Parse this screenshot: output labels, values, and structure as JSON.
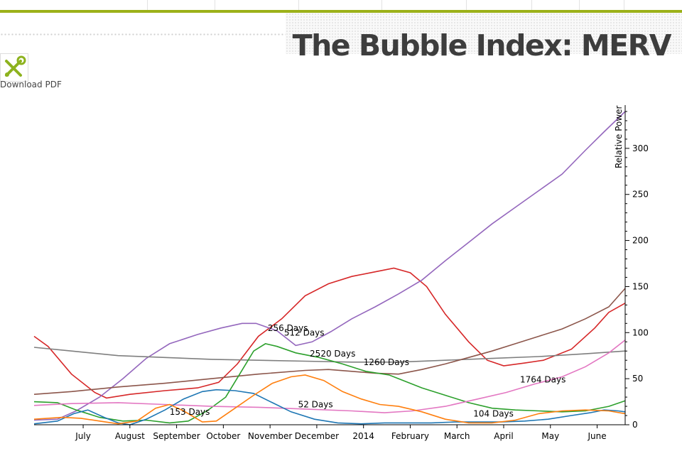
{
  "header": {
    "title": "The Bubble Index: MERV"
  },
  "toolbar": {
    "download_label": "Download PDF",
    "tool_icon": "tools-icon"
  },
  "colors": {
    "accent": "#9cb119"
  },
  "chart_data": {
    "type": "line",
    "ylabel": "Relative Power",
    "xlabel": "",
    "ylim": [
      0,
      350
    ],
    "yticks": [
      0,
      50,
      100,
      150,
      200,
      250,
      300
    ],
    "x_ticks": [
      {
        "label": "July",
        "x": 1.75
      },
      {
        "label": "August",
        "x": 2.75
      },
      {
        "label": "September",
        "x": 3.75
      },
      {
        "label": "October",
        "x": 4.75
      },
      {
        "label": "November",
        "x": 5.75
      },
      {
        "label": "December",
        "x": 6.75
      },
      {
        "label": "2014",
        "x": 7.75
      },
      {
        "label": "February",
        "x": 8.75
      },
      {
        "label": "March",
        "x": 9.75
      },
      {
        "label": "April",
        "x": 10.75
      },
      {
        "label": "May",
        "x": 11.75
      },
      {
        "label": "June",
        "x": 12.75
      }
    ],
    "xlim": [
      0.7,
      13.35
    ],
    "annotations": [
      {
        "text": "256 Days",
        "x": 5.7,
        "y": 105
      },
      {
        "text": "512 Days",
        "x": 6.05,
        "y": 100
      },
      {
        "text": "2520 Days",
        "x": 6.6,
        "y": 77
      },
      {
        "text": "1260 Days",
        "x": 7.75,
        "y": 68
      },
      {
        "text": "1764 Days",
        "x": 11.1,
        "y": 49
      },
      {
        "text": "153 Days",
        "x": 3.6,
        "y": 14
      },
      {
        "text": "52 Days",
        "x": 6.35,
        "y": 22
      },
      {
        "text": "104 Days",
        "x": 10.1,
        "y": 12
      }
    ],
    "series": [
      {
        "color": "#d62728",
        "points": [
          [
            0.7,
            96
          ],
          [
            1.0,
            85
          ],
          [
            1.5,
            55
          ],
          [
            2.0,
            35
          ],
          [
            2.25,
            29
          ],
          [
            2.75,
            33
          ],
          [
            3.5,
            37
          ],
          [
            4.2,
            40
          ],
          [
            4.65,
            46
          ],
          [
            5.05,
            66
          ],
          [
            5.5,
            96
          ],
          [
            6.0,
            115
          ],
          [
            6.5,
            140
          ],
          [
            7.0,
            153
          ],
          [
            7.5,
            161
          ],
          [
            8.0,
            166
          ],
          [
            8.4,
            170
          ],
          [
            8.75,
            165
          ],
          [
            9.1,
            150
          ],
          [
            9.5,
            120
          ],
          [
            10.0,
            90
          ],
          [
            10.4,
            70
          ],
          [
            10.75,
            64
          ],
          [
            11.2,
            67
          ],
          [
            11.6,
            70
          ],
          [
            12.2,
            82
          ],
          [
            12.7,
            105
          ],
          [
            13.0,
            122
          ],
          [
            13.35,
            132
          ]
        ]
      },
      {
        "color": "#9467bd",
        "points": [
          [
            0.7,
            5
          ],
          [
            1.2,
            6
          ],
          [
            1.6,
            15
          ],
          [
            2.1,
            30
          ],
          [
            2.6,
            50
          ],
          [
            3.1,
            72
          ],
          [
            3.6,
            88
          ],
          [
            4.2,
            98
          ],
          [
            4.7,
            105
          ],
          [
            5.15,
            110
          ],
          [
            5.45,
            110
          ],
          [
            5.9,
            102
          ],
          [
            6.3,
            86
          ],
          [
            6.65,
            90
          ],
          [
            7.05,
            101
          ],
          [
            7.5,
            115
          ],
          [
            8.0,
            128
          ],
          [
            8.5,
            142
          ],
          [
            9.0,
            157
          ],
          [
            9.5,
            178
          ],
          [
            10.0,
            198
          ],
          [
            10.5,
            218
          ],
          [
            11.0,
            236
          ],
          [
            11.5,
            254
          ],
          [
            12.0,
            272
          ],
          [
            12.5,
            298
          ],
          [
            12.9,
            318
          ],
          [
            13.35,
            340
          ]
        ]
      },
      {
        "color": "#7f7f7f",
        "points": [
          [
            0.7,
            84
          ],
          [
            1.5,
            80
          ],
          [
            2.5,
            75
          ],
          [
            3.5,
            73
          ],
          [
            4.5,
            71
          ],
          [
            5.5,
            70
          ],
          [
            6.5,
            69
          ],
          [
            7.5,
            68
          ],
          [
            8.5,
            68
          ],
          [
            9.5,
            70
          ],
          [
            10.5,
            72
          ],
          [
            11.5,
            74
          ],
          [
            12.5,
            77
          ],
          [
            13.35,
            80
          ]
        ]
      },
      {
        "color": "#8c564b",
        "points": [
          [
            0.7,
            33
          ],
          [
            1.5,
            36
          ],
          [
            2.5,
            41
          ],
          [
            3.5,
            45
          ],
          [
            4.5,
            50
          ],
          [
            5.5,
            55
          ],
          [
            6.5,
            59
          ],
          [
            7.0,
            60
          ],
          [
            7.5,
            58
          ],
          [
            8.0,
            56
          ],
          [
            8.5,
            55
          ],
          [
            9.0,
            60
          ],
          [
            9.5,
            66
          ],
          [
            10.0,
            73
          ],
          [
            10.5,
            80
          ],
          [
            11.0,
            88
          ],
          [
            11.5,
            96
          ],
          [
            12.0,
            104
          ],
          [
            12.5,
            115
          ],
          [
            13.0,
            128
          ],
          [
            13.35,
            148
          ]
        ]
      },
      {
        "color": "#2ca02c",
        "points": [
          [
            0.7,
            25
          ],
          [
            1.2,
            24
          ],
          [
            1.6,
            16
          ],
          [
            2.1,
            8
          ],
          [
            2.6,
            4
          ],
          [
            3.1,
            5
          ],
          [
            3.6,
            2
          ],
          [
            4.0,
            4
          ],
          [
            4.4,
            15
          ],
          [
            4.8,
            30
          ],
          [
            5.1,
            55
          ],
          [
            5.4,
            80
          ],
          [
            5.65,
            88
          ],
          [
            5.9,
            85
          ],
          [
            6.3,
            78
          ],
          [
            6.8,
            73
          ],
          [
            7.3,
            66
          ],
          [
            7.8,
            58
          ],
          [
            8.3,
            54
          ],
          [
            8.6,
            48
          ],
          [
            9.0,
            40
          ],
          [
            9.5,
            32
          ],
          [
            10.0,
            24
          ],
          [
            10.5,
            18
          ],
          [
            11.0,
            16
          ],
          [
            11.5,
            15
          ],
          [
            12.0,
            14
          ],
          [
            12.5,
            15
          ],
          [
            13.0,
            20
          ],
          [
            13.35,
            26
          ]
        ]
      },
      {
        "color": "#e377c2",
        "points": [
          [
            0.7,
            21
          ],
          [
            1.5,
            23
          ],
          [
            2.5,
            24
          ],
          [
            3.5,
            22
          ],
          [
            4.5,
            20
          ],
          [
            5.5,
            19
          ],
          [
            6.5,
            17
          ],
          [
            7.5,
            15
          ],
          [
            8.2,
            13
          ],
          [
            8.8,
            15
          ],
          [
            9.5,
            20
          ],
          [
            10.2,
            28
          ],
          [
            10.8,
            35
          ],
          [
            11.4,
            44
          ],
          [
            12.0,
            52
          ],
          [
            12.5,
            63
          ],
          [
            13.0,
            78
          ],
          [
            13.35,
            92
          ]
        ]
      },
      {
        "color": "#1f77b4",
        "points": [
          [
            0.7,
            1
          ],
          [
            1.2,
            4
          ],
          [
            1.55,
            12
          ],
          [
            1.85,
            16
          ],
          [
            2.2,
            8
          ],
          [
            2.5,
            2
          ],
          [
            2.75,
            0
          ],
          [
            3.1,
            6
          ],
          [
            3.5,
            16
          ],
          [
            3.9,
            28
          ],
          [
            4.3,
            36
          ],
          [
            4.6,
            38
          ],
          [
            5.0,
            37
          ],
          [
            5.4,
            34
          ],
          [
            5.8,
            24
          ],
          [
            6.2,
            14
          ],
          [
            6.7,
            6
          ],
          [
            7.2,
            2
          ],
          [
            7.7,
            1
          ],
          [
            8.2,
            2
          ],
          [
            8.7,
            2
          ],
          [
            9.2,
            2
          ],
          [
            9.7,
            3
          ],
          [
            10.2,
            3
          ],
          [
            10.7,
            3
          ],
          [
            11.2,
            4
          ],
          [
            11.7,
            6
          ],
          [
            12.2,
            10
          ],
          [
            12.6,
            13
          ],
          [
            12.9,
            16
          ],
          [
            13.2,
            15
          ],
          [
            13.35,
            14
          ]
        ]
      },
      {
        "color": "#ff7f0e",
        "points": [
          [
            0.7,
            6
          ],
          [
            1.3,
            8
          ],
          [
            1.7,
            7
          ],
          [
            2.1,
            4
          ],
          [
            2.5,
            1
          ],
          [
            2.9,
            4
          ],
          [
            3.3,
            18
          ],
          [
            3.6,
            22
          ],
          [
            3.9,
            15
          ],
          [
            4.3,
            3
          ],
          [
            4.6,
            4
          ],
          [
            5.0,
            18
          ],
          [
            5.4,
            32
          ],
          [
            5.8,
            45
          ],
          [
            6.2,
            52
          ],
          [
            6.5,
            54
          ],
          [
            6.9,
            48
          ],
          [
            7.3,
            36
          ],
          [
            7.7,
            28
          ],
          [
            8.1,
            22
          ],
          [
            8.5,
            20
          ],
          [
            9.0,
            14
          ],
          [
            9.5,
            6
          ],
          [
            10.0,
            2
          ],
          [
            10.5,
            2
          ],
          [
            11.0,
            5
          ],
          [
            11.5,
            12
          ],
          [
            12.0,
            15
          ],
          [
            12.5,
            16
          ],
          [
            13.0,
            15
          ],
          [
            13.35,
            12
          ]
        ]
      }
    ]
  }
}
